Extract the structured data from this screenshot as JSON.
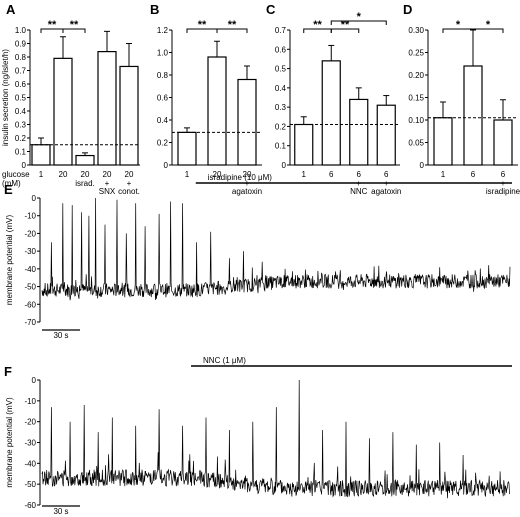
{
  "chart_data": [
    {
      "panel": "A",
      "type": "bar",
      "ylabel": "insulin secretion (ng/islet/h)",
      "ylim": [
        0,
        1.0
      ],
      "yticks": [
        "0",
        "0.1",
        "0.2",
        "0.3",
        "0.4",
        "0.5",
        "0.6",
        "0.7",
        "0.8",
        "0.9",
        "1.0"
      ],
      "row_label": "glucose\n(mM)",
      "categories": [
        {
          "value": "1",
          "sub": []
        },
        {
          "value": "20",
          "sub": []
        },
        {
          "value": "20",
          "sub": [
            "israd."
          ]
        },
        {
          "value": "20",
          "sub": [
            "+",
            "SNX"
          ]
        },
        {
          "value": "20",
          "sub": [
            "+",
            "conot."
          ]
        }
      ],
      "values": [
        0.15,
        0.79,
        0.07,
        0.84,
        0.73
      ],
      "errors": [
        0.05,
        0.16,
        0.02,
        0.15,
        0.17
      ],
      "baseline": 0.15,
      "significance": [
        {
          "from": 0,
          "to": 1,
          "label": "**",
          "level": 0
        },
        {
          "from": 1,
          "to": 2,
          "label": "**",
          "level": 0
        }
      ]
    },
    {
      "panel": "B",
      "type": "bar",
      "ylim": [
        0,
        1.2
      ],
      "yticks": [
        "0",
        "0.2",
        "0.4",
        "0.6",
        "0.8",
        "1.0",
        "1.2"
      ],
      "categories": [
        {
          "value": "1",
          "sub": []
        },
        {
          "value": "20",
          "sub": []
        },
        {
          "value": "20",
          "sub": [
            "+",
            "agatoxin"
          ]
        }
      ],
      "values": [
        0.29,
        0.96,
        0.76
      ],
      "errors": [
        0.04,
        0.14,
        0.12
      ],
      "baseline": 0.29,
      "significance": [
        {
          "from": 0,
          "to": 1,
          "label": "**",
          "level": 0
        },
        {
          "from": 1,
          "to": 2,
          "label": "**",
          "level": 0
        }
      ]
    },
    {
      "panel": "C",
      "type": "bar",
      "ylim": [
        0,
        0.7
      ],
      "yticks": [
        "0",
        "0.1",
        "0.2",
        "0.3",
        "0.4",
        "0.5",
        "0.6",
        "0.7"
      ],
      "categories": [
        {
          "value": "1",
          "sub": []
        },
        {
          "value": "6",
          "sub": []
        },
        {
          "value": "6",
          "sub": [
            "+",
            "NNC"
          ]
        },
        {
          "value": "6",
          "sub": [
            "+",
            "agatoxin"
          ]
        }
      ],
      "values": [
        0.21,
        0.54,
        0.34,
        0.31
      ],
      "errors": [
        0.04,
        0.08,
        0.06,
        0.05
      ],
      "baseline": 0.21,
      "significance": [
        {
          "from": 0,
          "to": 1,
          "label": "**",
          "level": 0
        },
        {
          "from": 1,
          "to": 2,
          "label": "**",
          "level": 0
        },
        {
          "from": 1,
          "to": 3,
          "label": "*",
          "level": 1
        }
      ]
    },
    {
      "panel": "D",
      "type": "bar",
      "ylim": [
        0,
        0.3
      ],
      "yticks": [
        "0",
        "0.05",
        "0.10",
        "0.15",
        "0.20",
        "0.25",
        "0.30"
      ],
      "categories": [
        {
          "value": "1",
          "sub": []
        },
        {
          "value": "6",
          "sub": []
        },
        {
          "value": "6",
          "sub": [
            "+",
            "isradipine"
          ]
        }
      ],
      "values": [
        0.105,
        0.22,
        0.1
      ],
      "errors": [
        0.035,
        0.08,
        0.045
      ],
      "baseline": 0.105,
      "significance": [
        {
          "from": 0,
          "to": 1,
          "label": "*",
          "level": 0
        },
        {
          "from": 1,
          "to": 2,
          "label": "*",
          "level": 0
        }
      ]
    },
    {
      "panel": "E",
      "type": "line",
      "ylabel": "membrane potential (mV)",
      "ylim": [
        -70,
        0
      ],
      "yticks": [
        "-70",
        "-60",
        "-50",
        "-40",
        "-30",
        "-20",
        "-10",
        "0"
      ],
      "scalebar": "30 s",
      "drug_label": "isradipine (10 μM)",
      "drug_window": [
        0.33,
        1.0
      ],
      "trace": {
        "rest_before": -52,
        "rest_after": -47,
        "noise": 4,
        "spikes": [
          [
            0.02,
            -25
          ],
          [
            0.045,
            -3
          ],
          [
            0.065,
            -4
          ],
          [
            0.085,
            -8
          ],
          [
            0.1,
            -10
          ],
          [
            0.115,
            2
          ],
          [
            0.135,
            -15
          ],
          [
            0.16,
            -1
          ],
          [
            0.18,
            -20
          ],
          [
            0.2,
            -3
          ],
          [
            0.22,
            -16
          ],
          [
            0.25,
            -9
          ],
          [
            0.275,
            -2
          ],
          [
            0.3,
            -3
          ],
          [
            0.33,
            -25
          ],
          [
            0.36,
            -19
          ],
          [
            0.4,
            -34
          ],
          [
            0.43,
            -30
          ],
          [
            0.47,
            -36
          ],
          [
            0.52,
            -40
          ]
        ]
      }
    },
    {
      "panel": "F",
      "type": "line",
      "ylabel": "membrane potential (mV)",
      "ylim": [
        -60,
        0
      ],
      "yticks": [
        "-60",
        "-50",
        "-40",
        "-30",
        "-20",
        "-10",
        "0"
      ],
      "scalebar": "30 s",
      "drug_label": "NNC (1 μM)",
      "drug_window": [
        0.32,
        1.0
      ],
      "trace": {
        "rest_before": -47,
        "rest_after": -52,
        "noise": 4,
        "spikes": [
          [
            0.02,
            -13
          ],
          [
            0.06,
            -20
          ],
          [
            0.09,
            -12
          ],
          [
            0.12,
            -25
          ],
          [
            0.15,
            -18
          ],
          [
            0.2,
            -22
          ],
          [
            0.25,
            -14
          ],
          [
            0.3,
            -22
          ],
          [
            0.35,
            -18
          ],
          [
            0.4,
            -24
          ],
          [
            0.45,
            -20
          ],
          [
            0.5,
            -13
          ],
          [
            0.55,
            4
          ],
          [
            0.6,
            -24
          ],
          [
            0.65,
            -20
          ],
          [
            0.7,
            -28
          ],
          [
            0.75,
            -25
          ],
          [
            0.8,
            -31
          ],
          [
            0.85,
            -30
          ],
          [
            0.9,
            -36
          ]
        ]
      }
    }
  ]
}
